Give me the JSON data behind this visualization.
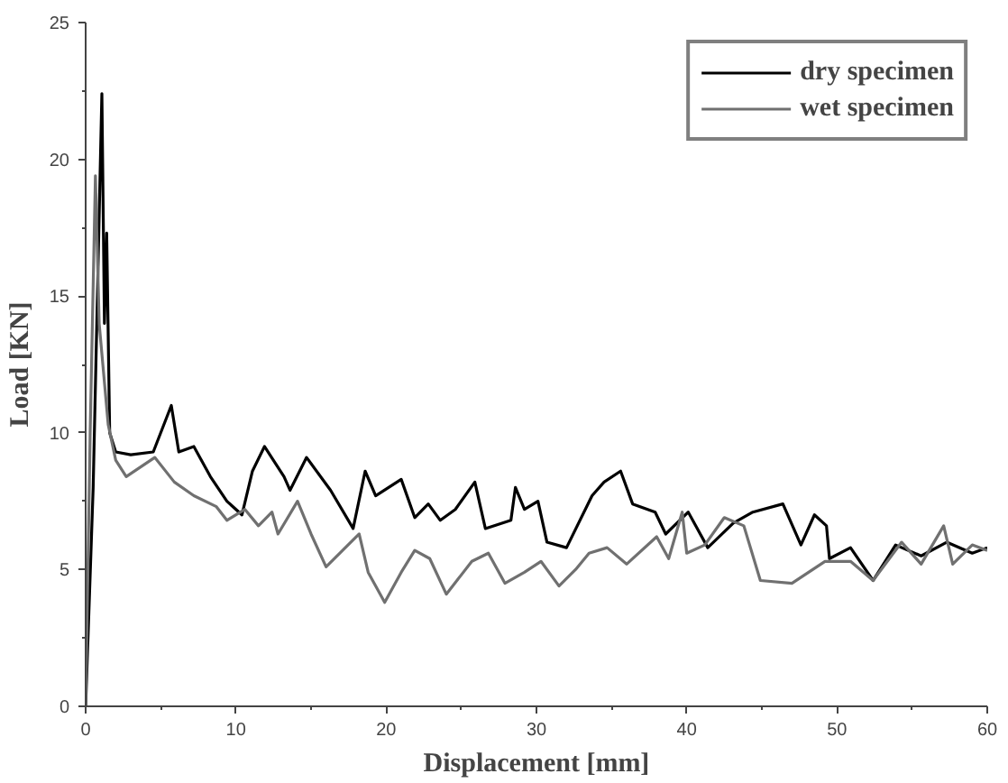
{
  "chart_data": {
    "type": "line",
    "xlabel": "Displacement [mm]",
    "ylabel": "Load [KN]",
    "xlim": [
      0,
      60
    ],
    "ylim": [
      0,
      25
    ],
    "xticks": [
      0,
      10,
      20,
      30,
      40,
      50,
      60
    ],
    "yticks": [
      0,
      5,
      10,
      15,
      20,
      25
    ],
    "grid": false,
    "legend": "top right",
    "marker": "none",
    "line_style": "solid",
    "series": [
      {
        "name": "dry specimen",
        "color": "#000000",
        "x": [
          0,
          0.5,
          1.08,
          1.25,
          1.4,
          1.6,
          2.0,
          3.0,
          4.5,
          5.7,
          6.2,
          7.2,
          8.3,
          9.4,
          10.4,
          11.1,
          11.9,
          13.2,
          13.6,
          14.7,
          16.3,
          17.8,
          18.6,
          19.3,
          21.0,
          21.9,
          22.8,
          23.6,
          24.6,
          25.9,
          26.6,
          28.3,
          28.6,
          29.2,
          30.1,
          30.7,
          32.0,
          33.7,
          34.5,
          35.6,
          36.4,
          37.9,
          38.6,
          40.1,
          41.4,
          43.1,
          44.4,
          46.4,
          47.6,
          48.5,
          49.3,
          49.5,
          50.9,
          52.4,
          53.9,
          55.6,
          57.3,
          59.0,
          60.0
        ],
        "values": [
          0,
          8.0,
          22.4,
          14.0,
          17.3,
          10.0,
          9.3,
          9.2,
          9.3,
          11.0,
          9.3,
          9.5,
          8.4,
          7.5,
          7.0,
          8.6,
          9.5,
          8.4,
          7.9,
          9.1,
          7.9,
          6.5,
          8.6,
          7.7,
          8.3,
          6.9,
          7.4,
          6.8,
          7.2,
          8.2,
          6.5,
          6.8,
          8.0,
          7.2,
          7.5,
          6.0,
          5.8,
          7.7,
          8.2,
          8.6,
          7.4,
          7.1,
          6.3,
          7.1,
          5.8,
          6.7,
          7.1,
          7.4,
          5.9,
          7.0,
          6.6,
          5.4,
          5.8,
          4.6,
          5.9,
          5.5,
          6.0,
          5.6,
          5.8
        ]
      },
      {
        "name": "wet specimen",
        "color": "#707070",
        "x": [
          0,
          0.3,
          0.65,
          0.9,
          1.5,
          2.0,
          2.7,
          4.6,
          5.9,
          7.2,
          8.7,
          9.4,
          10.6,
          11.5,
          12.4,
          12.8,
          14.1,
          15.0,
          16.0,
          17.1,
          18.2,
          18.8,
          19.9,
          21.0,
          21.9,
          22.9,
          24.0,
          25.7,
          26.8,
          27.9,
          29.2,
          30.3,
          31.5,
          32.6,
          33.5,
          34.7,
          36.0,
          38.0,
          38.8,
          39.7,
          40.0,
          41.2,
          42.5,
          43.8,
          44.9,
          47.0,
          49.2,
          50.9,
          52.4,
          54.3,
          55.6,
          57.1,
          57.7,
          59.0,
          60.0
        ],
        "values": [
          0,
          10.0,
          19.4,
          14.0,
          10.3,
          9.0,
          8.4,
          9.1,
          8.2,
          7.7,
          7.3,
          6.8,
          7.2,
          6.6,
          7.1,
          6.3,
          7.5,
          6.3,
          5.1,
          5.7,
          6.3,
          4.9,
          3.8,
          4.9,
          5.7,
          5.4,
          4.1,
          5.3,
          5.6,
          4.5,
          4.9,
          5.3,
          4.4,
          5.0,
          5.6,
          5.8,
          5.2,
          6.2,
          5.4,
          7.1,
          5.6,
          5.9,
          6.9,
          6.6,
          4.6,
          4.5,
          5.3,
          5.3,
          4.6,
          6.0,
          5.2,
          6.6,
          5.2,
          5.9,
          5.7
        ]
      }
    ]
  }
}
